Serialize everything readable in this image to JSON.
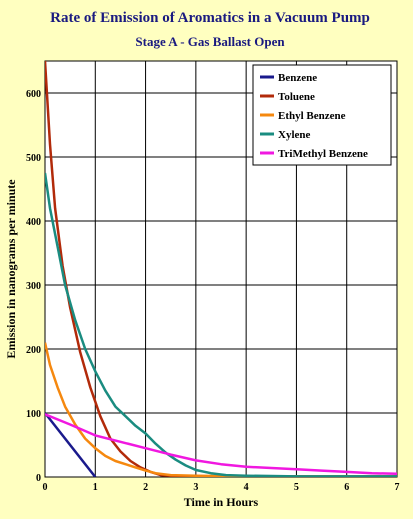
{
  "chart_data": {
    "type": "line",
    "title": "Rate of Emission of Aromatics in a Vacuum Pump",
    "subtitle": "Stage A - Gas Ballast Open",
    "xlabel": "Time in Hours",
    "ylabel": "Emission in nanograms per minute",
    "xlim": [
      0,
      7
    ],
    "ylim": [
      0,
      650
    ],
    "xticks": [
      0,
      1,
      2,
      3,
      4,
      5,
      6,
      7
    ],
    "yticks": [
      0,
      100,
      200,
      300,
      400,
      500,
      600
    ],
    "grid": true,
    "legend_position": "top-right",
    "series": [
      {
        "name": "Benzene",
        "color": "#1a1a8c",
        "x": [
          0,
          1
        ],
        "y": [
          100,
          0
        ]
      },
      {
        "name": "Toluene",
        "color": "#b22a0a",
        "x": [
          0,
          0.1,
          0.2,
          0.35,
          0.5,
          0.7,
          0.9,
          1.1,
          1.3,
          1.5,
          1.7,
          1.9,
          2.1,
          2.3,
          2.5,
          3,
          4,
          5,
          6,
          7
        ],
        "y": [
          650,
          520,
          420,
          330,
          265,
          195,
          140,
          95,
          60,
          40,
          25,
          15,
          8,
          3,
          2,
          1,
          1,
          1,
          1,
          1
        ]
      },
      {
        "name": "Ethyl Benzene",
        "color": "#f5880f",
        "x": [
          0,
          0.1,
          0.25,
          0.4,
          0.6,
          0.8,
          1.0,
          1.2,
          1.4,
          1.6,
          1.8,
          2.0,
          2.2,
          2.5,
          3,
          4,
          5,
          6,
          7
        ],
        "y": [
          210,
          175,
          140,
          110,
          82,
          60,
          45,
          33,
          25,
          20,
          15,
          10,
          6,
          3,
          2,
          1,
          1,
          1,
          1
        ]
      },
      {
        "name": "Xylene",
        "color": "#1a8c80",
        "x": [
          0,
          0.1,
          0.25,
          0.4,
          0.6,
          0.8,
          1.0,
          1.2,
          1.4,
          1.6,
          1.8,
          2.0,
          2.2,
          2.4,
          2.6,
          2.8,
          3.0,
          3.3,
          3.6,
          4,
          5,
          6,
          7
        ],
        "y": [
          475,
          420,
          360,
          300,
          245,
          200,
          165,
          135,
          110,
          95,
          80,
          68,
          52,
          38,
          27,
          18,
          11,
          6,
          3,
          2,
          1,
          1,
          1
        ]
      },
      {
        "name": "TriMethyl Benzene",
        "color": "#f018e0",
        "x": [
          0,
          0.5,
          1,
          1.5,
          2,
          2.5,
          3,
          3.5,
          4,
          4.5,
          5,
          5.5,
          6,
          6.5,
          7
        ],
        "y": [
          98,
          82,
          65,
          55,
          45,
          35,
          26,
          20,
          16,
          14,
          12,
          10,
          8,
          6,
          5
        ]
      }
    ]
  }
}
